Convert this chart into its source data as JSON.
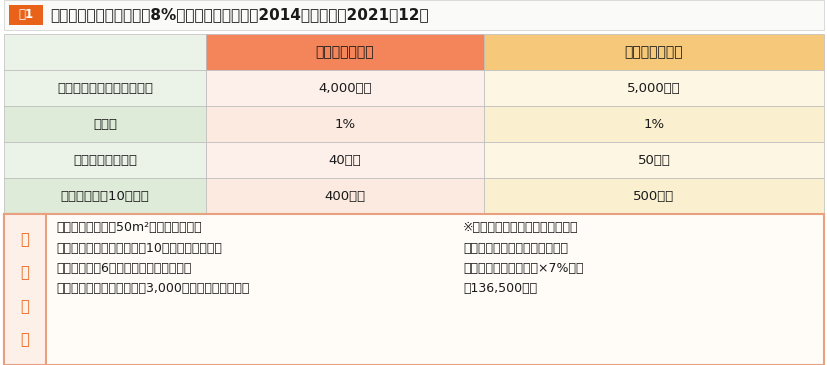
{
  "title": "住宅ローン控除〈消費税8%の場合〉居住時期：2014年４月から2021年12月",
  "title_label": "表1",
  "col1_header": "一般住宅の場合",
  "col2_header": "認定住宅の場合",
  "rows": [
    {
      "label": "住宅ローン年末残高の上限",
      "col1": "4,000万円",
      "col2": "5,000万円"
    },
    {
      "label": "控除率",
      "col1": "1%",
      "col2": "1%"
    },
    {
      "label": "各年の控除限度額",
      "col1": "40万円",
      "col2": "50万円"
    },
    {
      "label": "最大控除額（10年間）",
      "col1": "400万円",
      "col2": "500万円"
    }
  ],
  "conditions_label": "主\nな\n条\n件",
  "conditions_left_lines": [
    "・住宅の床面積が50m²以上であること",
    "・住宅ローンの返済期間が10年以上であること",
    "・取得日から6か月以内に入居すること",
    "・その年の合計所得金額が3,000万円以下であること"
  ],
  "conditions_right_lines": [
    "※所得税から控除しきれない場合",
    "は翌年の住民税から控除。所得",
    "税の課税総所得金額等×7%（最",
    "大136,500円）"
  ],
  "colors": {
    "title_label_bg": "#E8621A",
    "title_label_text": "#FFFFFF",
    "title_text": "#1A1A1A",
    "header_col1_bg": "#F4845A",
    "header_col2_bg": "#F5C87A",
    "header_text": "#1A1A1A",
    "row_label_bg": [
      "#EBF2E8",
      "#DEEBD8",
      "#EBF2E8",
      "#DEEBD8"
    ],
    "row_col1_bg": [
      "#FDF0EA",
      "#FCEAE0",
      "#FDF0EA",
      "#FCEAE0"
    ],
    "row_col2_bg": [
      "#FDF6E3",
      "#FAF0D0",
      "#FDF6E3",
      "#FAF0D0"
    ],
    "cond_label_bg": "#FDF0E8",
    "cond_label_text": "#E8621A",
    "cond_body_bg": "#FFFCF8",
    "cond_border": "#E8A080",
    "table_border": "#BBBBBB",
    "title_area_bg": "#FAFAF8"
  }
}
